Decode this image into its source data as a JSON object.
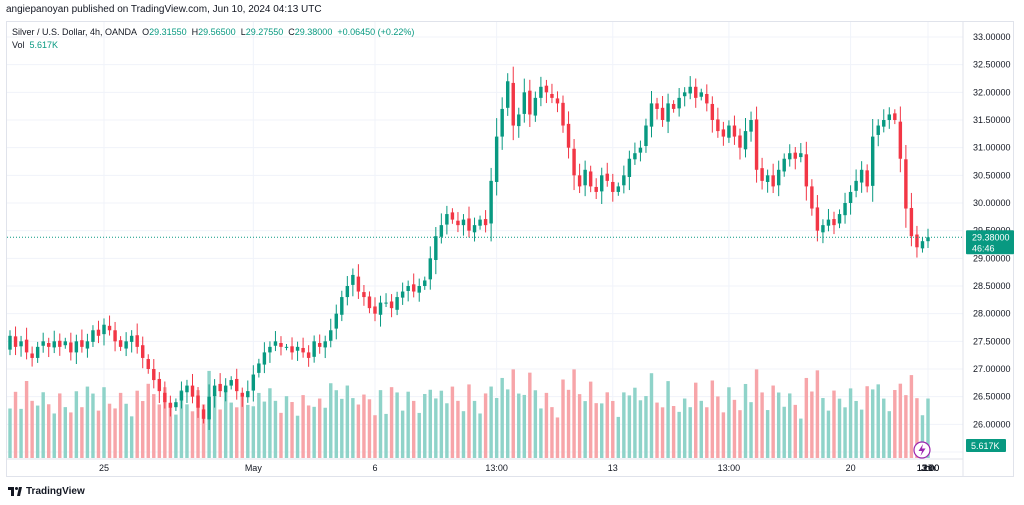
{
  "publish_line": "angiepanoyan published on TradingView.com, Jun 10, 2024 04:13 UTC",
  "legend": {
    "symbol": "Silver / U.S. Dollar, 4h, OANDA",
    "open_label": "O",
    "open": "29.31550",
    "high_label": "H",
    "high": "29.56500",
    "low_label": "L",
    "low": "29.27550",
    "close_label": "C",
    "close": "29.38000",
    "change": "+0.06450 (+0.22%)",
    "vol_label": "Vol",
    "vol": "5.617K"
  },
  "price_tag": {
    "price": "29.38000",
    "countdown": "46:46"
  },
  "volume_tag": "5.617K",
  "footer": {
    "brand": "TradingView"
  },
  "colors": {
    "up": "#089981",
    "down": "#f23645",
    "vol_up": "#8fd3c9",
    "vol_down": "#f7a5a9",
    "grid": "#f0f3fa"
  },
  "chart_data": {
    "type": "candlestick",
    "y_ticks": [
      "33.00000",
      "32.50000",
      "32.00000",
      "31.50000",
      "31.00000",
      "30.50000",
      "30.00000",
      "29.50000",
      "29.00000",
      "28.50000",
      "28.00000",
      "27.50000",
      "27.00000",
      "26.50000",
      "26.00000",
      "25.50000"
    ],
    "ylim": [
      25.5,
      33.0
    ],
    "x_ticks": [
      "25",
      "May",
      "6",
      "13:00",
      "13",
      "13:00",
      "20",
      "13:00",
      "27",
      "13:00",
      "Jun",
      "13:00",
      "10"
    ],
    "series": [
      {
        "name": "Silver / U.S. Dollar",
        "close": [
          27.6,
          27.4,
          27.5,
          27.3,
          27.2,
          27.4,
          27.5,
          27.4,
          27.5,
          27.4,
          27.5,
          27.3,
          27.5,
          27.4,
          27.5,
          27.7,
          27.6,
          27.8,
          27.7,
          27.5,
          27.4,
          27.5,
          27.6,
          27.4,
          27.2,
          27.0,
          26.8,
          26.6,
          26.4,
          26.3,
          26.4,
          26.6,
          26.7,
          26.5,
          26.3,
          26.1,
          26.5,
          26.7,
          26.6,
          26.7,
          26.8,
          26.6,
          26.5,
          26.6,
          26.9,
          27.1,
          27.3,
          27.4,
          27.5,
          27.4,
          27.4,
          27.3,
          27.4,
          27.3,
          27.2,
          27.5,
          27.4,
          27.5,
          27.7,
          28.0,
          28.3,
          28.5,
          28.7,
          28.4,
          28.3,
          28.1,
          28.0,
          28.2,
          28.2,
          28.1,
          28.3,
          28.4,
          28.5,
          28.4,
          28.5,
          28.6,
          29.0,
          29.4,
          29.6,
          29.8,
          29.7,
          29.6,
          29.7,
          29.5,
          29.6,
          29.7,
          29.6,
          30.4,
          31.2,
          31.7,
          32.2,
          31.4,
          31.6,
          32.0,
          31.6,
          31.9,
          32.1,
          32.0,
          31.9,
          31.8,
          31.4,
          31.0,
          30.5,
          30.3,
          30.6,
          30.3,
          30.2,
          30.5,
          30.4,
          30.2,
          30.3,
          30.5,
          30.8,
          30.9,
          31.0,
          31.4,
          31.8,
          31.7,
          31.5,
          31.8,
          31.7,
          31.9,
          32.0,
          32.1,
          31.9,
          32.0,
          31.8,
          31.5,
          31.3,
          31.2,
          31.4,
          31.2,
          31.0,
          31.3,
          31.5,
          30.6,
          30.4,
          30.5,
          30.3,
          30.6,
          30.8,
          30.9,
          30.8,
          30.9,
          30.3,
          29.9,
          29.5,
          29.6,
          29.7,
          29.6,
          29.8,
          30.0,
          30.2,
          30.4,
          30.6,
          30.3,
          31.2,
          31.4,
          31.5,
          31.6,
          31.5,
          30.8,
          29.9,
          29.4,
          29.2,
          29.31,
          29.38
        ],
        "volume_colors": "up/down by candle"
      }
    ],
    "annotations": [
      "last price 29.38000",
      "countdown 46:46",
      "volume 5.617K"
    ]
  }
}
